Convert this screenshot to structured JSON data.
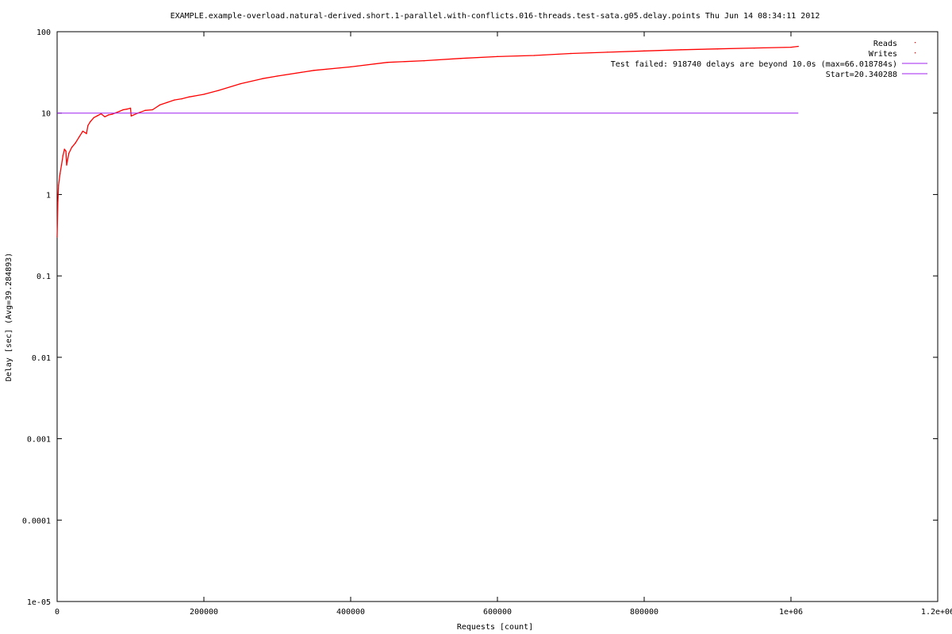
{
  "chart_data": {
    "type": "scatter",
    "title": "EXAMPLE.example-overload.natural-derived.short.1-parallel.with-conflicts.016-threads.test-sata.g05.delay.points Thu Jun 14 08:34:11 2012",
    "xlabel": "Requests [count]",
    "ylabel": "Delay [sec]  (Avg=39.284893)",
    "x_scale": "linear",
    "y_scale": "log",
    "xlim": [
      0,
      1200000
    ],
    "ylim": [
      1e-05,
      100
    ],
    "x_ticks": [
      {
        "value": 0,
        "label": "0"
      },
      {
        "value": 200000,
        "label": "200000"
      },
      {
        "value": 400000,
        "label": "400000"
      },
      {
        "value": 600000,
        "label": "600000"
      },
      {
        "value": 800000,
        "label": "800000"
      },
      {
        "value": 1000000,
        "label": "1e+06"
      },
      {
        "value": 1200000,
        "label": "1.2e+06"
      }
    ],
    "y_ticks": [
      {
        "value": 100,
        "label": "100"
      },
      {
        "value": 10,
        "label": "10"
      },
      {
        "value": 1,
        "label": "1"
      },
      {
        "value": 0.1,
        "label": "0.1"
      },
      {
        "value": 0.01,
        "label": "0.01"
      },
      {
        "value": 0.001,
        "label": "0.001"
      },
      {
        "value": 0.0001,
        "label": "0.0001"
      },
      {
        "value": 1e-05,
        "label": "1e-05"
      }
    ],
    "grid": false,
    "legend_position": "top-right",
    "legend": [
      {
        "label": "Reads",
        "style": "points",
        "color": "#ff0000"
      },
      {
        "label": "Writes",
        "style": "points",
        "color": "#ff0000"
      },
      {
        "label": "Test failed: 918740 delays are beyond 10.0s (max=66.018784s)",
        "style": "line",
        "color": "#a020f0"
      },
      {
        "label": "Start=20.340288",
        "style": "line",
        "color": "#a020f0"
      }
    ],
    "series": [
      {
        "name": "Writes",
        "color": "#ff0000",
        "x": [
          0,
          1000,
          2000,
          4000,
          6000,
          8000,
          10000,
          12000,
          13000,
          14000,
          16000,
          20000,
          25000,
          30000,
          35000,
          40000,
          42000,
          45000,
          50000,
          55000,
          60000,
          65000,
          70000,
          75000,
          80000,
          85000,
          90000,
          95000,
          100000,
          101000,
          110000,
          120000,
          130000,
          140000,
          150000,
          160000,
          170000,
          180000,
          200000,
          220000,
          250000,
          280000,
          300000,
          350000,
          400000,
          450000,
          500000,
          550000,
          600000,
          650000,
          700000,
          750000,
          800000,
          850000,
          900000,
          950000,
          1000000,
          1010000
        ],
        "y": [
          0.3,
          0.8,
          1.3,
          1.8,
          2.3,
          3.0,
          3.6,
          3.4,
          2.3,
          2.6,
          3.2,
          3.8,
          4.3,
          5.1,
          6.0,
          5.6,
          7.0,
          7.8,
          8.8,
          9.3,
          9.8,
          9.0,
          9.5,
          9.7,
          10.1,
          10.5,
          11.0,
          11.2,
          11.5,
          9.2,
          10.0,
          10.8,
          11.0,
          12.6,
          13.5,
          14.5,
          15.0,
          15.8,
          17.0,
          19.0,
          23.0,
          26.5,
          28.5,
          33.5,
          37.0,
          42.0,
          44.0,
          47.0,
          49.5,
          51.0,
          54.0,
          56.0,
          58.0,
          60.0,
          61.5,
          63.0,
          64.5,
          66.0
        ]
      },
      {
        "name": "Reads",
        "color": "#ff0000",
        "x": [],
        "y": []
      },
      {
        "name": "Test failed: 918740 delays are beyond 10.0s (max=66.018784s)",
        "color": "#a020f0",
        "type": "line",
        "x": [
          0,
          1010000
        ],
        "y": [
          10,
          10
        ]
      }
    ]
  }
}
